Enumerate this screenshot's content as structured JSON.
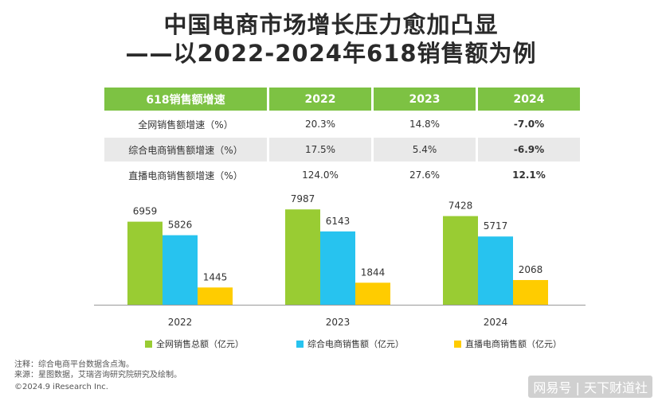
{
  "title_line1": "中国电商市场增长压力愈加凸显",
  "title_line2": "——以2022-2024年618销售额为例",
  "table": {
    "header": [
      "618销售额增速",
      "2022",
      "2023",
      "2024"
    ],
    "rows": [
      [
        "全网销售额增速（%）",
        "20.3%",
        "14.8%",
        "-7.0%"
      ],
      [
        "综合电商销售额增速（%）",
        "17.5%",
        "5.4%",
        "-6.9%"
      ],
      [
        "直播电商销售额增速（%）",
        "124.0%",
        "27.6%",
        "12.1%"
      ]
    ]
  },
  "chart_data": {
    "type": "bar",
    "categories": [
      "2022",
      "2023",
      "2024"
    ],
    "series": [
      {
        "name": "全网销售总额（亿元）",
        "values": [
          6959,
          7987,
          7428
        ],
        "color": "#99cc33"
      },
      {
        "name": "综合电商销售额（亿元）",
        "values": [
          5826,
          6143,
          5717
        ],
        "color": "#27c3ef"
      },
      {
        "name": "直播电商销售额（亿元）",
        "values": [
          1445,
          1844,
          2068
        ],
        "color": "#ffcc00"
      }
    ],
    "ylim": [
      0,
      9000
    ]
  },
  "legend": {
    "item1": "全网销售总额（亿元）",
    "item2": "综合电商销售额（亿元）",
    "item3": "直播电商销售额（亿元）"
  },
  "notes": {
    "line1": "注释：综合电商平台数据含点淘。",
    "line2": "来源：星图数据，艾瑞咨询研究院研究及绘制。",
    "line3": "©2024.9 iResearch Inc."
  },
  "watermark": "网易号 | 天下财道社"
}
